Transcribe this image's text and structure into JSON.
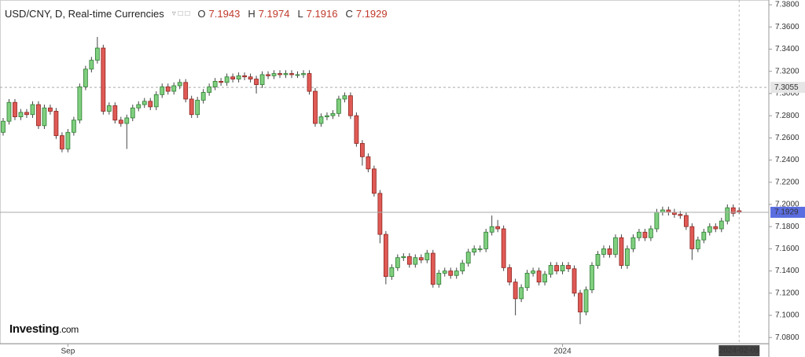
{
  "chart_data": {
    "type": "candlestick",
    "title": "USD/CNY, D, Real-time Currencies",
    "ohlc_labels": [
      "O",
      "H",
      "L",
      "C"
    ],
    "logo": "Investing",
    "logo_domain": ".com",
    "categories": [
      null,
      null,
      null,
      null,
      null,
      null,
      null,
      null,
      null,
      null,
      null,
      "Sep",
      null,
      null,
      null,
      null,
      null,
      null,
      null,
      null,
      null,
      null,
      null,
      null,
      null,
      null,
      null,
      null,
      null,
      null,
      null,
      null,
      null,
      null,
      null,
      null,
      null,
      null,
      null,
      null,
      null,
      null,
      null,
      null,
      null,
      null,
      null,
      null,
      null,
      null,
      null,
      null,
      null,
      null,
      null,
      null,
      null,
      null,
      null,
      null,
      null,
      null,
      null,
      null,
      null,
      null,
      null,
      null,
      null,
      null,
      null,
      null,
      null,
      null,
      null,
      null,
      null,
      null,
      null,
      null,
      null,
      null,
      null,
      null,
      null,
      null,
      null,
      null,
      null,
      null,
      null,
      null,
      null,
      null,
      null,
      "2024",
      null,
      null,
      null,
      null,
      null,
      null,
      null,
      null,
      null,
      null,
      null,
      null,
      null,
      null,
      null,
      null,
      null,
      null,
      null,
      null,
      null,
      null,
      null,
      null,
      null,
      null,
      null,
      null,
      null,
      "2024-02-09"
    ],
    "series": [
      {
        "up_color": "#7fcf7f",
        "down_color": "#e05a55",
        "values": [
          [
            7.265,
            7.278,
            7.262,
            7.275
          ],
          [
            7.275,
            7.295,
            7.272,
            7.292
          ],
          [
            7.292,
            7.295,
            7.276,
            7.279
          ],
          [
            7.279,
            7.286,
            7.276,
            7.283
          ],
          [
            7.283,
            7.286,
            7.278,
            7.281
          ],
          [
            7.281,
            7.293,
            7.278,
            7.29
          ],
          [
            7.29,
            7.293,
            7.268,
            7.271
          ],
          [
            7.271,
            7.29,
            7.268,
            7.287
          ],
          [
            7.287,
            7.29,
            7.281,
            7.284
          ],
          [
            7.284,
            7.287,
            7.259,
            7.262
          ],
          [
            7.262,
            7.265,
            7.247,
            7.25
          ],
          [
            7.25,
            7.268,
            7.247,
            7.265
          ],
          [
            7.265,
            7.279,
            7.262,
            7.276
          ],
          [
            7.276,
            7.309,
            7.273,
            7.306
          ],
          [
            7.306,
            7.325,
            7.303,
            7.322
          ],
          [
            7.322,
            7.333,
            7.319,
            7.33
          ],
          [
            7.33,
            7.351,
            7.327,
            7.341
          ],
          [
            7.341,
            7.344,
            7.281,
            7.284
          ],
          [
            7.284,
            7.292,
            7.281,
            7.289
          ],
          [
            7.289,
            7.292,
            7.273,
            7.276
          ],
          [
            7.276,
            7.279,
            7.27,
            7.273
          ],
          [
            7.273,
            7.281,
            7.25,
            7.278
          ],
          [
            7.278,
            7.29,
            7.275,
            7.287
          ],
          [
            7.287,
            7.293,
            7.284,
            7.29
          ],
          [
            7.29,
            7.296,
            7.287,
            7.293
          ],
          [
            7.293,
            7.296,
            7.285,
            7.288
          ],
          [
            7.288,
            7.302,
            7.285,
            7.299
          ],
          [
            7.299,
            7.309,
            7.296,
            7.306
          ],
          [
            7.306,
            7.309,
            7.299,
            7.302
          ],
          [
            7.302,
            7.31,
            7.299,
            7.307
          ],
          [
            7.307,
            7.313,
            7.304,
            7.31
          ],
          [
            7.31,
            7.313,
            7.292,
            7.295
          ],
          [
            7.295,
            7.298,
            7.278,
            7.281
          ],
          [
            7.281,
            7.297,
            7.278,
            7.294
          ],
          [
            7.294,
            7.304,
            7.291,
            7.301
          ],
          [
            7.301,
            7.309,
            7.298,
            7.306
          ],
          [
            7.306,
            7.314,
            7.303,
            7.311
          ],
          [
            7.311,
            7.314,
            7.307,
            7.31
          ],
          [
            7.31,
            7.318,
            7.307,
            7.315
          ],
          [
            7.315,
            7.318,
            7.31,
            7.313
          ],
          [
            7.313,
            7.319,
            7.31,
            7.316
          ],
          [
            7.316,
            7.319,
            7.312,
            7.315
          ],
          [
            7.315,
            7.318,
            7.31,
            7.313
          ],
          [
            7.313,
            7.316,
            7.3,
            7.308
          ],
          [
            7.308,
            7.32,
            7.305,
            7.317
          ],
          [
            7.317,
            7.32,
            7.313,
            7.316
          ],
          [
            7.316,
            7.321,
            7.313,
            7.318
          ],
          [
            7.318,
            7.321,
            7.314,
            7.317
          ],
          [
            7.317,
            7.321,
            7.314,
            7.318
          ],
          [
            7.318,
            7.321,
            7.314,
            7.317
          ],
          [
            7.317,
            7.32,
            7.314,
            7.317
          ],
          [
            7.317,
            7.321,
            7.314,
            7.318
          ],
          [
            7.318,
            7.321,
            7.299,
            7.302
          ],
          [
            7.302,
            7.305,
            7.27,
            7.273
          ],
          [
            7.273,
            7.282,
            7.27,
            7.279
          ],
          [
            7.279,
            7.283,
            7.276,
            7.28
          ],
          [
            7.28,
            7.285,
            7.277,
            7.282
          ],
          [
            7.282,
            7.298,
            7.279,
            7.295
          ],
          [
            7.295,
            7.301,
            7.292,
            7.298
          ],
          [
            7.298,
            7.301,
            7.277,
            7.28
          ],
          [
            7.28,
            7.283,
            7.252,
            7.255
          ],
          [
            7.255,
            7.258,
            7.235,
            7.243
          ],
          [
            7.243,
            7.246,
            7.229,
            7.232
          ],
          [
            7.232,
            7.235,
            7.207,
            7.21
          ],
          [
            7.21,
            7.213,
            7.165,
            7.173
          ],
          [
            7.173,
            7.176,
            7.128,
            7.135
          ],
          [
            7.135,
            7.146,
            7.132,
            7.143
          ],
          [
            7.143,
            7.155,
            7.14,
            7.152
          ],
          [
            7.152,
            7.156,
            7.149,
            7.153
          ],
          [
            7.153,
            7.156,
            7.143,
            7.146
          ],
          [
            7.146,
            7.155,
            7.143,
            7.152
          ],
          [
            7.152,
            7.155,
            7.147,
            7.15
          ],
          [
            7.15,
            7.159,
            7.147,
            7.156
          ],
          [
            7.156,
            7.159,
            7.125,
            7.128
          ],
          [
            7.128,
            7.141,
            7.125,
            7.138
          ],
          [
            7.138,
            7.143,
            7.135,
            7.14
          ],
          [
            7.14,
            7.143,
            7.133,
            7.136
          ],
          [
            7.136,
            7.143,
            7.133,
            7.14
          ],
          [
            7.14,
            7.15,
            7.137,
            7.147
          ],
          [
            7.147,
            7.16,
            7.144,
            7.157
          ],
          [
            7.157,
            7.163,
            7.154,
            7.16
          ],
          [
            7.16,
            7.163,
            7.157,
            7.16
          ],
          [
            7.16,
            7.178,
            7.157,
            7.175
          ],
          [
            7.175,
            7.19,
            7.172,
            7.18
          ],
          [
            7.18,
            7.186,
            7.175,
            7.178
          ],
          [
            7.178,
            7.181,
            7.14,
            7.143
          ],
          [
            7.143,
            7.146,
            7.127,
            7.13
          ],
          [
            7.13,
            7.133,
            7.1,
            7.115
          ],
          [
            7.115,
            7.128,
            7.112,
            7.125
          ],
          [
            7.125,
            7.141,
            7.122,
            7.138
          ],
          [
            7.138,
            7.143,
            7.135,
            7.14
          ],
          [
            7.14,
            7.143,
            7.127,
            7.13
          ],
          [
            7.13,
            7.14,
            7.127,
            7.137
          ],
          [
            7.137,
            7.148,
            7.134,
            7.145
          ],
          [
            7.145,
            7.148,
            7.137,
            7.14
          ],
          [
            7.14,
            7.148,
            7.137,
            7.145
          ],
          [
            7.145,
            7.148,
            7.139,
            7.142
          ],
          [
            7.142,
            7.145,
            7.117,
            7.12
          ],
          [
            7.12,
            7.123,
            7.092,
            7.103
          ],
          [
            7.103,
            7.126,
            7.1,
            7.123
          ],
          [
            7.123,
            7.148,
            7.12,
            7.145
          ],
          [
            7.145,
            7.158,
            7.142,
            7.155
          ],
          [
            7.155,
            7.163,
            7.152,
            7.16
          ],
          [
            7.16,
            7.163,
            7.152,
            7.155
          ],
          [
            7.155,
            7.173,
            7.152,
            7.17
          ],
          [
            7.17,
            7.173,
            7.142,
            7.145
          ],
          [
            7.145,
            7.163,
            7.142,
            7.16
          ],
          [
            7.16,
            7.173,
            7.157,
            7.17
          ],
          [
            7.17,
            7.178,
            7.167,
            7.175
          ],
          [
            7.175,
            7.178,
            7.167,
            7.17
          ],
          [
            7.17,
            7.181,
            7.167,
            7.178
          ],
          [
            7.178,
            7.196,
            7.175,
            7.193
          ],
          [
            7.193,
            7.198,
            7.19,
            7.195
          ],
          [
            7.195,
            7.198,
            7.19,
            7.193
          ],
          [
            7.193,
            7.196,
            7.188,
            7.191
          ],
          [
            7.191,
            7.194,
            7.187,
            7.19
          ],
          [
            7.19,
            7.193,
            7.177,
            7.18
          ],
          [
            7.18,
            7.183,
            7.15,
            7.16
          ],
          [
            7.16,
            7.171,
            7.157,
            7.168
          ],
          [
            7.168,
            7.178,
            7.165,
            7.175
          ],
          [
            7.175,
            7.183,
            7.172,
            7.18
          ],
          [
            7.18,
            7.183,
            7.175,
            7.178
          ],
          [
            7.178,
            7.188,
            7.175,
            7.185
          ],
          [
            7.185,
            7.2,
            7.182,
            7.197
          ],
          [
            7.197,
            7.2,
            7.189,
            7.192
          ],
          [
            7.1943,
            7.1974,
            7.1916,
            7.1929
          ]
        ]
      }
    ],
    "ylim": [
      7.0745,
      7.3843
    ],
    "yticks": [
      {
        "value": 7.38,
        "label": "7.3800"
      },
      {
        "value": 7.36,
        "label": "7.3600"
      },
      {
        "value": 7.34,
        "label": "7.3400"
      },
      {
        "value": 7.32,
        "label": "7.3200"
      },
      {
        "value": 7.3,
        "label": "7.3000"
      },
      {
        "value": 7.28,
        "label": "7.2800"
      },
      {
        "value": 7.26,
        "label": "7.2600"
      },
      {
        "value": 7.24,
        "label": "7.2400"
      },
      {
        "value": 7.22,
        "label": "7.2200"
      },
      {
        "value": 7.2,
        "label": "7.2000"
      },
      {
        "value": 7.18,
        "label": "7.1800"
      },
      {
        "value": 7.16,
        "label": "7.1600"
      },
      {
        "value": 7.14,
        "label": "7.1400"
      },
      {
        "value": 7.12,
        "label": "7.1200"
      },
      {
        "value": 7.1,
        "label": "7.1000"
      },
      {
        "value": 7.08,
        "label": "7.0800"
      }
    ],
    "price_line": 7.3055
  }
}
